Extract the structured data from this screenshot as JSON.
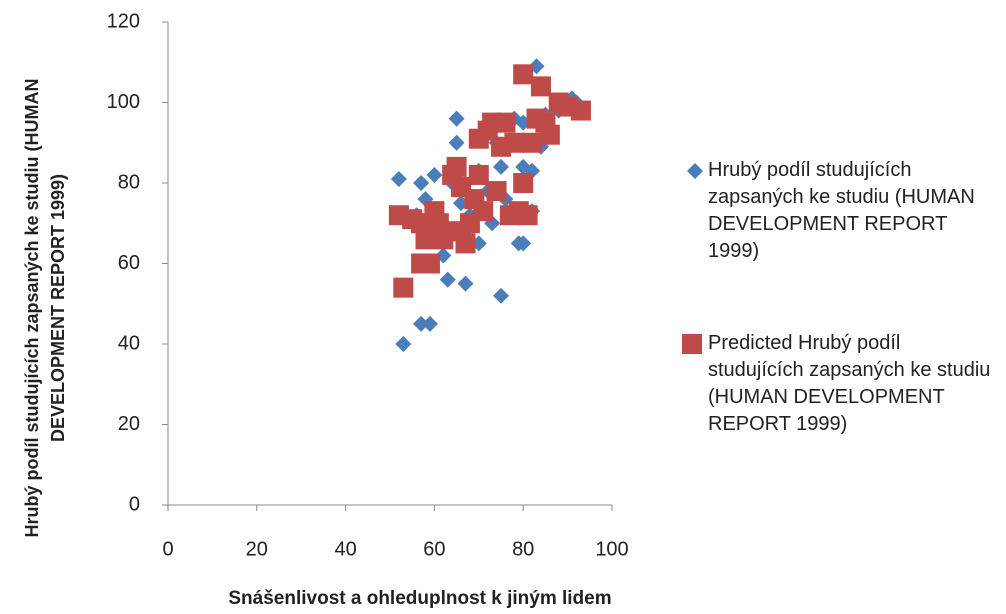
{
  "chart_data": {
    "type": "scatter",
    "xlabel": "Snášenlivost a ohleduplnost k jiným lidem",
    "ylabel": "Hrubý podíl studujících zapsaných ke studiu (HUMAN DEVELOPMENT REPORT 1999)",
    "xlim": [
      0,
      100
    ],
    "xticks": [
      0,
      20,
      40,
      60,
      80,
      100
    ],
    "ylim": [
      0,
      120
    ],
    "yticks": [
      0,
      20,
      40,
      60,
      80,
      100,
      120
    ],
    "legend": "right",
    "series": [
      {
        "name": "Hrubý podíl studujících zapsaných ke studiu (HUMAN DEVELOPMENT REPORT 1999)",
        "color": "#4a7ebb",
        "marker": "diamond",
        "x": [
          53,
          57,
          59,
          63,
          67,
          75,
          52,
          57,
          60,
          58,
          65,
          65,
          83,
          91,
          92,
          84,
          82,
          80,
          75,
          79,
          80,
          62,
          70,
          72,
          78,
          85,
          88,
          68,
          73,
          62,
          56,
          60,
          66,
          74,
          80,
          70,
          76,
          82,
          64,
          86
        ],
        "values": [
          40,
          45,
          45,
          56,
          55,
          52,
          81,
          80,
          82,
          76,
          96,
          90,
          109,
          101,
          100,
          89,
          83,
          84,
          84,
          65,
          65,
          62,
          83,
          78,
          96,
          97,
          98,
          72,
          70,
          70,
          72,
          68,
          75,
          90,
          95,
          65,
          76,
          73,
          80,
          93
        ]
      },
      {
        "name": "Predicted Hrubý podíl studujících zapsaných ke studiu (HUMAN DEVELOPMENT REPORT 1999)",
        "color": "#be4b48",
        "marker": "square",
        "x": [
          53,
          57,
          59,
          52,
          55,
          57,
          58,
          60,
          61,
          62,
          63,
          64,
          65,
          66,
          67,
          68,
          69,
          70,
          71,
          72,
          73,
          74,
          75,
          76,
          77,
          78,
          79,
          80,
          80,
          81,
          82,
          83,
          84,
          85,
          86,
          88,
          90,
          93,
          70,
          66
        ],
        "values": [
          54,
          60,
          60,
          72,
          71,
          70,
          66,
          73,
          70,
          66,
          68,
          82,
          84,
          79,
          65,
          70,
          76,
          82,
          73,
          93,
          95,
          78,
          89,
          95,
          72,
          90,
          73,
          107,
          80,
          72,
          90,
          96,
          104,
          95,
          92,
          100,
          99,
          98,
          91,
          68
        ]
      }
    ]
  }
}
